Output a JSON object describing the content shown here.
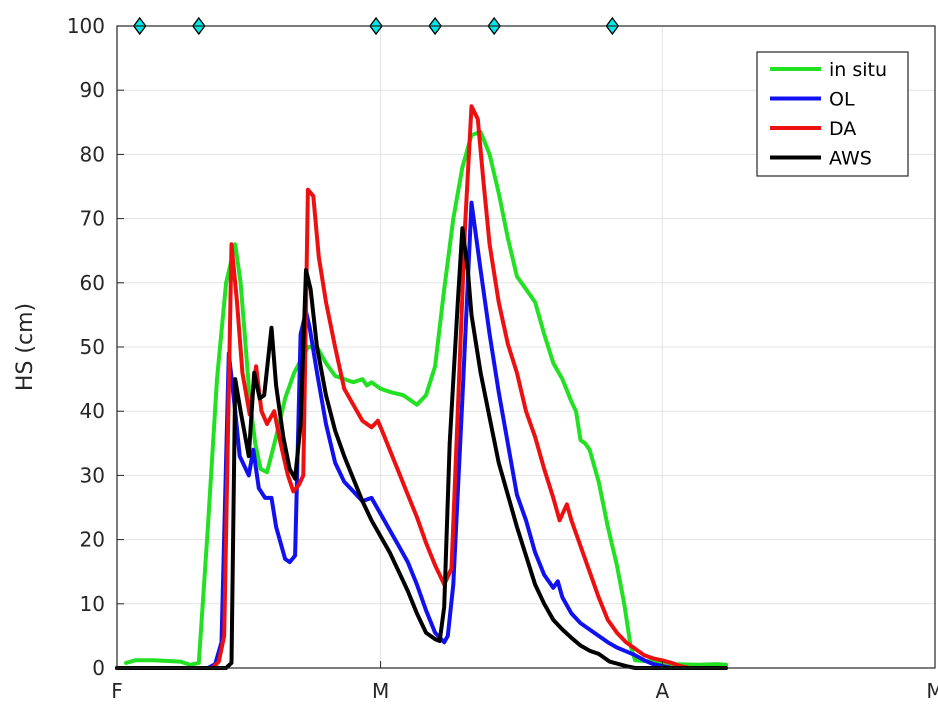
{
  "chart_data": {
    "type": "line",
    "title": "",
    "ylabel": "HS (cm)",
    "xlabel": "",
    "xlim": [
      0,
      90
    ],
    "ylim": [
      0,
      100
    ],
    "x_ticks": [
      {
        "pos": 0,
        "label": "F"
      },
      {
        "pos": 29,
        "label": "M"
      },
      {
        "pos": 60,
        "label": "A"
      },
      {
        "pos": 90,
        "label": "M"
      }
    ],
    "y_ticks": [
      0,
      10,
      20,
      30,
      40,
      50,
      60,
      70,
      80,
      90,
      100
    ],
    "grid": true,
    "legend_position": "top-right",
    "series": [
      {
        "name": "in situ",
        "color": "#22e022",
        "points": [
          [
            1,
            0.8
          ],
          [
            2,
            1.2
          ],
          [
            4,
            1.2
          ],
          [
            7,
            1.0
          ],
          [
            8,
            0.5
          ],
          [
            9,
            0.8
          ],
          [
            10,
            22
          ],
          [
            11,
            45
          ],
          [
            12,
            60
          ],
          [
            13,
            66
          ],
          [
            13.6,
            60
          ],
          [
            14,
            53
          ],
          [
            14.6,
            42
          ],
          [
            15.2,
            35
          ],
          [
            15.8,
            31
          ],
          [
            16.5,
            30.5
          ],
          [
            17.5,
            36
          ],
          [
            18.5,
            42
          ],
          [
            19.5,
            46
          ],
          [
            21,
            50
          ],
          [
            22,
            50
          ],
          [
            23,
            47.5
          ],
          [
            24,
            45.5
          ],
          [
            25,
            45
          ],
          [
            26,
            44.5
          ],
          [
            27,
            45
          ],
          [
            27.5,
            44
          ],
          [
            28,
            44.5
          ],
          [
            29,
            43.5
          ],
          [
            30,
            43
          ],
          [
            31.5,
            42.5
          ],
          [
            32,
            42
          ],
          [
            33,
            41
          ],
          [
            34,
            42.5
          ],
          [
            35,
            47
          ],
          [
            36,
            59
          ],
          [
            37,
            70
          ],
          [
            38,
            78
          ],
          [
            39,
            83
          ],
          [
            40,
            83.5
          ],
          [
            41,
            80
          ],
          [
            42,
            74
          ],
          [
            43,
            67
          ],
          [
            44,
            61
          ],
          [
            45,
            59
          ],
          [
            46,
            57
          ],
          [
            47,
            52
          ],
          [
            48,
            47.5
          ],
          [
            49,
            45
          ],
          [
            50,
            41.5
          ],
          [
            50.5,
            40
          ],
          [
            51,
            35.5
          ],
          [
            51.5,
            35
          ],
          [
            52,
            34
          ],
          [
            53,
            29
          ],
          [
            54,
            22
          ],
          [
            55,
            16
          ],
          [
            55.8,
            10
          ],
          [
            56.5,
            3.5
          ],
          [
            57,
            1.2
          ],
          [
            59,
            1.0
          ],
          [
            61,
            0.6
          ],
          [
            64,
            0.5
          ],
          [
            66,
            0.6
          ],
          [
            67,
            0.5
          ]
        ]
      },
      {
        "name": "OL",
        "color": "#1010f0",
        "points": [
          [
            0,
            0
          ],
          [
            10,
            0
          ],
          [
            10.8,
            0.6
          ],
          [
            11.5,
            4
          ],
          [
            12.3,
            49
          ],
          [
            13,
            40
          ],
          [
            13.5,
            33
          ],
          [
            14.5,
            30
          ],
          [
            15,
            34
          ],
          [
            15.6,
            28
          ],
          [
            16.3,
            26.5
          ],
          [
            17,
            26.5
          ],
          [
            17.5,
            22
          ],
          [
            18.5,
            17
          ],
          [
            19,
            16.5
          ],
          [
            19.6,
            17.5
          ],
          [
            20.2,
            52
          ],
          [
            20.8,
            55.5
          ],
          [
            21.2,
            53
          ],
          [
            22,
            46
          ],
          [
            23,
            38
          ],
          [
            24,
            32
          ],
          [
            25,
            29
          ],
          [
            26,
            27.5
          ],
          [
            27,
            26
          ],
          [
            28,
            26.5
          ],
          [
            29,
            24
          ],
          [
            30,
            21.5
          ],
          [
            31,
            19
          ],
          [
            32,
            16.5
          ],
          [
            33,
            13
          ],
          [
            34,
            9
          ],
          [
            35,
            5.5
          ],
          [
            36,
            4
          ],
          [
            36.4,
            5
          ],
          [
            37,
            13
          ],
          [
            38,
            42
          ],
          [
            39,
            72.5
          ],
          [
            40,
            62
          ],
          [
            41,
            52
          ],
          [
            42,
            43
          ],
          [
            43,
            35
          ],
          [
            44,
            27
          ],
          [
            45,
            23
          ],
          [
            46,
            18
          ],
          [
            47,
            14.5
          ],
          [
            48,
            12.5
          ],
          [
            48.5,
            13.5
          ],
          [
            49,
            11
          ],
          [
            50,
            8.5
          ],
          [
            51,
            7
          ],
          [
            52,
            6
          ],
          [
            53,
            5
          ],
          [
            54,
            4
          ],
          [
            55,
            3.2
          ],
          [
            56,
            2.6
          ],
          [
            57,
            2
          ],
          [
            58,
            1.2
          ],
          [
            59,
            0.6
          ],
          [
            61,
            0
          ],
          [
            67,
            0
          ]
        ]
      },
      {
        "name": "DA",
        "color": "#ee1010",
        "points": [
          [
            0,
            0
          ],
          [
            10.5,
            0
          ],
          [
            11.2,
            1
          ],
          [
            11.8,
            5
          ],
          [
            12.6,
            66
          ],
          [
            13.2,
            57
          ],
          [
            13.8,
            46
          ],
          [
            14.6,
            39.5
          ],
          [
            15.3,
            47
          ],
          [
            15.9,
            40
          ],
          [
            16.5,
            38
          ],
          [
            17.3,
            40
          ],
          [
            18,
            35
          ],
          [
            18.8,
            30
          ],
          [
            19.4,
            27.5
          ],
          [
            20,
            28.5
          ],
          [
            20.5,
            30
          ],
          [
            21,
            74.5
          ],
          [
            21.6,
            73.5
          ],
          [
            22.2,
            64
          ],
          [
            23,
            57
          ],
          [
            24,
            50
          ],
          [
            25,
            43.5
          ],
          [
            26,
            41
          ],
          [
            27,
            38.5
          ],
          [
            28,
            37.5
          ],
          [
            28.7,
            38.5
          ],
          [
            29.3,
            36.5
          ],
          [
            30,
            34
          ],
          [
            31,
            30.5
          ],
          [
            32,
            27
          ],
          [
            33,
            23.5
          ],
          [
            34,
            19.5
          ],
          [
            35,
            16
          ],
          [
            35.5,
            14.5
          ],
          [
            36,
            13
          ],
          [
            36.8,
            15.5
          ],
          [
            37.5,
            40
          ],
          [
            38.3,
            69
          ],
          [
            39,
            87.5
          ],
          [
            39.7,
            85.5
          ],
          [
            40.3,
            76
          ],
          [
            41,
            66
          ],
          [
            42,
            57
          ],
          [
            43,
            50.5
          ],
          [
            44,
            46
          ],
          [
            45,
            40
          ],
          [
            46,
            36
          ],
          [
            47,
            31
          ],
          [
            48,
            26.5
          ],
          [
            48.7,
            23
          ],
          [
            49.5,
            25.5
          ],
          [
            50,
            23
          ],
          [
            51,
            19
          ],
          [
            52,
            15
          ],
          [
            53,
            11
          ],
          [
            54,
            7.5
          ],
          [
            55,
            5.5
          ],
          [
            56,
            4
          ],
          [
            57,
            3
          ],
          [
            58,
            2
          ],
          [
            59,
            1.5
          ],
          [
            60,
            1.2
          ],
          [
            61,
            0.8
          ],
          [
            62,
            0.3
          ],
          [
            63,
            0
          ],
          [
            67,
            0
          ]
        ]
      },
      {
        "name": "AWS",
        "color": "#000000",
        "points": [
          [
            0,
            0
          ],
          [
            12,
            0
          ],
          [
            12.6,
            0.8
          ],
          [
            13,
            45
          ],
          [
            13.6,
            40
          ],
          [
            14.5,
            33
          ],
          [
            15.1,
            46
          ],
          [
            15.7,
            42
          ],
          [
            16.2,
            42.5
          ],
          [
            17,
            53
          ],
          [
            17.5,
            44
          ],
          [
            18.3,
            36
          ],
          [
            19,
            31
          ],
          [
            19.6,
            29.5
          ],
          [
            20.2,
            38
          ],
          [
            20.8,
            62
          ],
          [
            21.3,
            59
          ],
          [
            22,
            50
          ],
          [
            23,
            42.5
          ],
          [
            24,
            37
          ],
          [
            25,
            33
          ],
          [
            26,
            29.5
          ],
          [
            27,
            26
          ],
          [
            28,
            23
          ],
          [
            29,
            20.5
          ],
          [
            30,
            18
          ],
          [
            31,
            15
          ],
          [
            32,
            12
          ],
          [
            33,
            8.5
          ],
          [
            34,
            5.5
          ],
          [
            35,
            4.5
          ],
          [
            35.5,
            4.2
          ],
          [
            36,
            9.5
          ],
          [
            36.6,
            35
          ],
          [
            37.5,
            57
          ],
          [
            38,
            68.5
          ],
          [
            38.6,
            62
          ],
          [
            39,
            55
          ],
          [
            40,
            46
          ],
          [
            41,
            39
          ],
          [
            42,
            32
          ],
          [
            43,
            27
          ],
          [
            44,
            22
          ],
          [
            45,
            17.5
          ],
          [
            46,
            13
          ],
          [
            47,
            10
          ],
          [
            48,
            7.5
          ],
          [
            49,
            6
          ],
          [
            50,
            4.7
          ],
          [
            51,
            3.5
          ],
          [
            52,
            2.7
          ],
          [
            53,
            2.2
          ],
          [
            53.7,
            1.5
          ],
          [
            54.2,
            1
          ],
          [
            56,
            0.3
          ],
          [
            57,
            0
          ],
          [
            67,
            0
          ]
        ]
      }
    ],
    "markers": {
      "shape": "diamond",
      "color": "#00e8e8",
      "y": 100,
      "x": [
        2.5,
        9,
        28.5,
        35,
        41.5,
        54.5
      ]
    }
  }
}
